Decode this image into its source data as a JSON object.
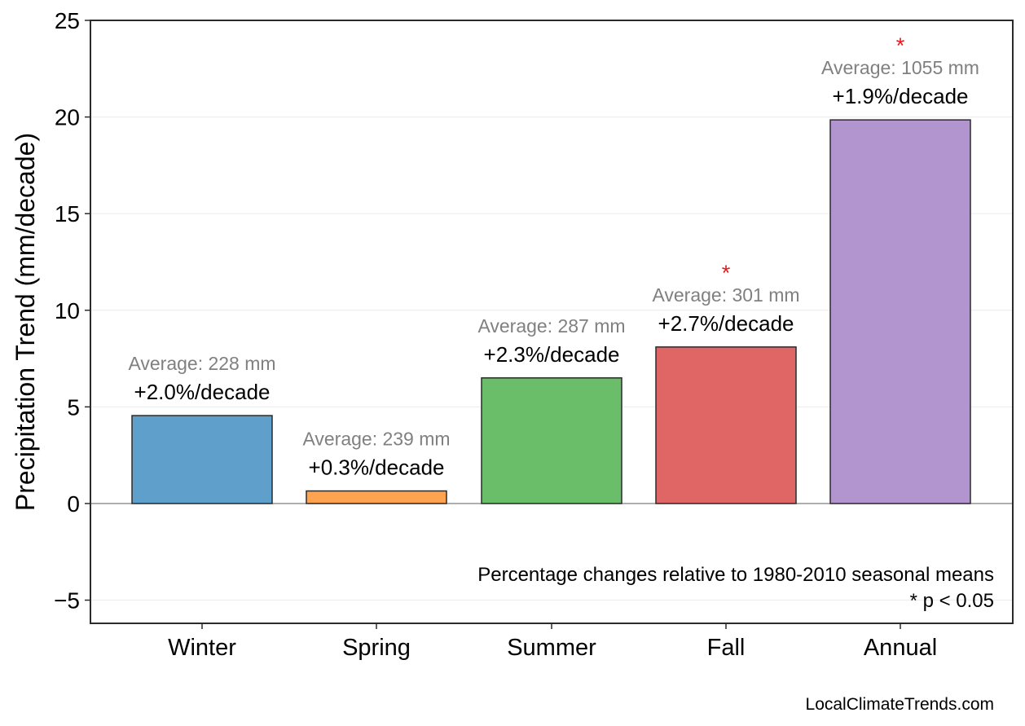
{
  "chart_data": {
    "type": "bar",
    "title": "",
    "xlabel": "",
    "ylabel": "Precipitation Trend (mm/decade)",
    "ylim": [
      -6.2,
      25
    ],
    "yticks": [
      -5,
      0,
      5,
      10,
      15,
      20,
      25
    ],
    "ytick_labels": [
      "−5",
      "0",
      "5",
      "10",
      "15",
      "20",
      "25"
    ],
    "grid": true,
    "zero_line": true,
    "categories": [
      "Winter",
      "Spring",
      "Summer",
      "Fall",
      "Annual"
    ],
    "values": [
      4.55,
      0.65,
      6.5,
      8.1,
      19.85
    ],
    "colors": [
      "#5f9fcc",
      "#fea34f",
      "#6abe6a",
      "#e06666",
      "#b295cf"
    ],
    "percent_labels": [
      "+2.0%/decade",
      "+0.3%/decade",
      "+2.3%/decade",
      "+2.7%/decade",
      "+1.9%/decade"
    ],
    "average_labels": [
      "Average: 228 mm",
      "Average: 239 mm",
      "Average: 287 mm",
      "Average: 301 mm",
      "Average: 1055 mm"
    ],
    "significant": [
      false,
      false,
      false,
      true,
      true
    ],
    "significance_marker": "*",
    "significance_color": "#e31a1c",
    "note_lines": [
      "Percentage changes relative to 1980-2010 seasonal means",
      "* p < 0.05"
    ],
    "source": "LocalClimateTrends.com"
  }
}
